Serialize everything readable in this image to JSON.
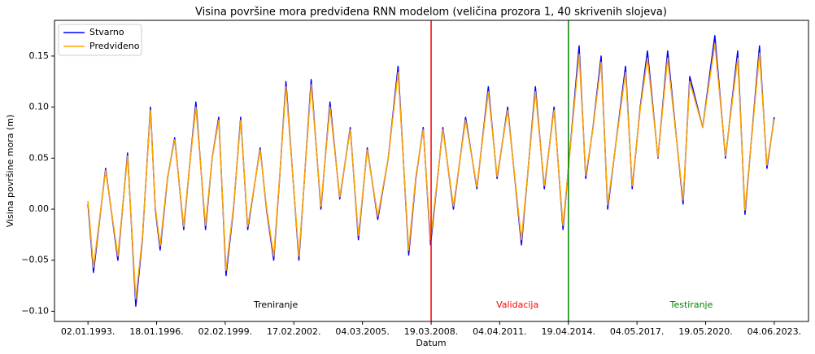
{
  "chart_data": {
    "type": "line",
    "title": "Visina površine mora predviđena RNN modelom (veličina prozora 1, 40 skrivenih slojeva)",
    "xlabel": "Datum",
    "ylabel": "Visina površine mora (m)",
    "x": [
      "1993-01-02",
      "1993-04-01",
      "1993-10-15",
      "1994-05-01",
      "1994-10-05",
      "1995-02-15",
      "1995-06-01",
      "1995-10-10",
      "1995-12-28",
      "1996-03-15",
      "1996-07-12",
      "1996-11-06",
      "1997-04-01",
      "1997-07-01",
      "1997-10-15",
      "1998-03-20",
      "1998-07-05",
      "1998-10-20",
      "1999-02-15",
      "1999-06-15",
      "1999-10-10",
      "2000-02-01",
      "2000-08-20",
      "2000-12-01",
      "2001-03-28",
      "2001-07-01",
      "2001-10-12",
      "2002-05-10",
      "2002-11-24",
      "2003-05-01",
      "2003-09-25",
      "2004-03-01",
      "2004-08-18",
      "2004-12-28",
      "2005-05-20",
      "2005-11-06",
      "2006-04-25",
      "2006-10-01",
      "2007-03-22",
      "2007-07-15",
      "2007-11-12",
      "2008-03-10",
      "2008-09-25",
      "2009-03-15",
      "2009-09-28",
      "2010-03-30",
      "2010-10-01",
      "2011-02-20",
      "2011-08-10",
      "2012-03-20",
      "2012-11-01",
      "2013-03-25",
      "2013-08-30",
      "2014-01-22",
      "2014-10-10",
      "2015-01-25",
      "2015-05-22",
      "2015-10-01",
      "2016-01-15",
      "2016-10-30",
      "2017-02-15",
      "2017-06-25",
      "2017-10-20",
      "2018-04-08",
      "2018-09-12",
      "2019-05-20",
      "2019-09-05",
      "2020-04-01",
      "2020-10-15",
      "2021-04-05",
      "2021-10-20",
      "2022-02-15",
      "2022-10-08",
      "2023-02-05",
      "2023-06-04"
    ],
    "series": [
      {
        "name": "Stvarno",
        "color": "#0000ff",
        "values": [
          0.005,
          -0.062,
          0.04,
          -0.05,
          0.055,
          -0.095,
          -0.03,
          0.1,
          0.0,
          -0.04,
          0.03,
          0.07,
          -0.02,
          0.04,
          0.105,
          -0.02,
          0.05,
          0.09,
          -0.065,
          0.0,
          0.09,
          -0.02,
          0.06,
          0.0,
          -0.05,
          0.03,
          0.125,
          -0.05,
          0.127,
          0.0,
          0.105,
          0.01,
          0.08,
          -0.03,
          0.06,
          -0.01,
          0.05,
          0.14,
          -0.045,
          0.03,
          0.08,
          -0.035,
          0.08,
          0.0,
          0.09,
          0.02,
          0.12,
          0.03,
          0.1,
          -0.035,
          0.12,
          0.02,
          0.1,
          -0.02,
          0.16,
          0.03,
          0.08,
          0.15,
          0.0,
          0.14,
          0.02,
          0.1,
          0.155,
          0.05,
          0.155,
          0.005,
          0.13,
          0.08,
          0.17,
          0.05,
          0.155,
          -0.005,
          0.16,
          0.04,
          0.09
        ]
      },
      {
        "name": "Predviđeno",
        "color": "#ffa500",
        "values": [
          0.008,
          -0.057,
          0.038,
          -0.046,
          0.052,
          -0.088,
          -0.028,
          0.097,
          0.002,
          -0.036,
          0.031,
          0.068,
          -0.017,
          0.04,
          0.1,
          -0.016,
          0.05,
          0.087,
          -0.06,
          0.002,
          0.087,
          -0.017,
          0.058,
          0.002,
          -0.046,
          0.031,
          0.12,
          -0.046,
          0.122,
          0.003,
          0.1,
          0.012,
          0.078,
          -0.026,
          0.058,
          -0.007,
          0.05,
          0.134,
          -0.04,
          0.032,
          0.078,
          -0.03,
          0.078,
          0.003,
          0.087,
          0.022,
          0.115,
          0.032,
          0.097,
          -0.03,
          0.115,
          0.023,
          0.097,
          -0.016,
          0.152,
          0.033,
          0.079,
          0.144,
          0.004,
          0.134,
          0.023,
          0.098,
          0.148,
          0.051,
          0.148,
          0.009,
          0.125,
          0.08,
          0.162,
          0.052,
          0.148,
          -0.001,
          0.153,
          0.043,
          0.088
        ]
      }
    ],
    "xlim": [
      "1991-07-10",
      "2024-12-09"
    ],
    "xticks": [
      {
        "value": "1993-01-02",
        "label": "02.01.1993."
      },
      {
        "value": "1996-01-18",
        "label": "18.01.1996."
      },
      {
        "value": "1999-02-02",
        "label": "02.02.1999."
      },
      {
        "value": "2002-02-17",
        "label": "17.02.2002."
      },
      {
        "value": "2005-03-04",
        "label": "04.03.2005."
      },
      {
        "value": "2008-03-19",
        "label": "19.03.2008."
      },
      {
        "value": "2011-04-04",
        "label": "04.04.2011."
      },
      {
        "value": "2014-04-19",
        "label": "19.04.2014."
      },
      {
        "value": "2017-05-04",
        "label": "04.05.2017."
      },
      {
        "value": "2020-05-19",
        "label": "19.05.2020."
      },
      {
        "value": "2023-06-04",
        "label": "04.06.2023."
      }
    ],
    "ylim": [
      -0.11,
      0.185
    ],
    "yticks": [
      {
        "value": -0.1,
        "label": "−0.10"
      },
      {
        "value": -0.05,
        "label": "−0.05"
      },
      {
        "value": 0,
        "label": "0.00"
      },
      {
        "value": 0.05,
        "label": "0.05"
      },
      {
        "value": 0.1,
        "label": "0.10"
      },
      {
        "value": 0.15,
        "label": "0.15"
      }
    ],
    "grid": false,
    "legend": "upper left",
    "vlines": [
      {
        "x": "2008-03-19",
        "color": "#ff0000"
      },
      {
        "x": "2014-04-19",
        "color": "#008000"
      }
    ],
    "annotations": [
      {
        "text": "Treniranje",
        "x": "2001-05-01",
        "y": -0.094,
        "color": "#000000"
      },
      {
        "text": "Validacija",
        "x": "2012-01-15",
        "y": -0.094,
        "color": "#ff0000"
      },
      {
        "text": "Testiranje",
        "x": "2019-10-01",
        "y": -0.094,
        "color": "#008000"
      }
    ]
  }
}
